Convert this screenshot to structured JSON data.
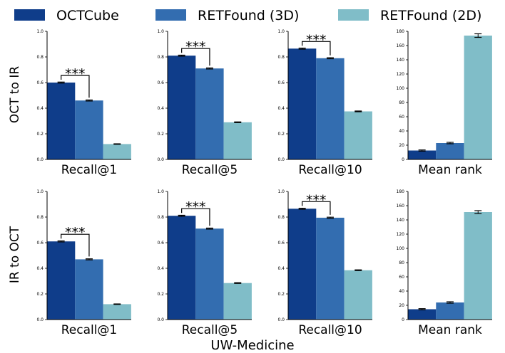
{
  "legend": {
    "items": [
      {
        "label": "OCTCube",
        "color": "#0f3d8a"
      },
      {
        "label": "RETFound (3D)",
        "color": "#336db0"
      },
      {
        "label": "RETFound (2D)",
        "color": "#80bdc8"
      }
    ]
  },
  "rows": [
    "OCT to IR",
    "IR to OCT"
  ],
  "footer": "UW-Medicine",
  "chart_data": [
    {
      "type": "bar",
      "row": "OCT to IR",
      "xlabel": "Recall@1",
      "ylim": [
        0,
        1.0
      ],
      "yticks": [
        "0.0",
        "0.2",
        "0.4",
        "0.6",
        "0.8",
        "1.0"
      ],
      "series": [
        {
          "name": "OCTCube",
          "value": 0.6,
          "err": 0.004
        },
        {
          "name": "RETFound (3D)",
          "value": 0.46,
          "err": 0.004
        },
        {
          "name": "RETFound (2D)",
          "value": 0.12,
          "err": 0.002
        }
      ],
      "significance": "***"
    },
    {
      "type": "bar",
      "row": "OCT to IR",
      "xlabel": "Recall@5",
      "ylim": [
        0,
        1.0
      ],
      "yticks": [
        "0.0",
        "0.2",
        "0.4",
        "0.6",
        "0.8",
        "1.0"
      ],
      "series": [
        {
          "name": "OCTCube",
          "value": 0.81,
          "err": 0.004
        },
        {
          "name": "RETFound (3D)",
          "value": 0.71,
          "err": 0.004
        },
        {
          "name": "RETFound (2D)",
          "value": 0.29,
          "err": 0.003
        }
      ],
      "significance": "***"
    },
    {
      "type": "bar",
      "row": "OCT to IR",
      "xlabel": "Recall@10",
      "ylim": [
        0,
        1.0
      ],
      "yticks": [
        "0.0",
        "0.2",
        "0.4",
        "0.6",
        "0.8",
        "1.0"
      ],
      "series": [
        {
          "name": "OCTCube",
          "value": 0.865,
          "err": 0.004
        },
        {
          "name": "RETFound (3D)",
          "value": 0.79,
          "err": 0.004
        },
        {
          "name": "RETFound (2D)",
          "value": 0.375,
          "err": 0.003
        }
      ],
      "significance": "***"
    },
    {
      "type": "bar",
      "row": "OCT to IR",
      "xlabel": "Mean rank",
      "ylim": [
        0,
        180
      ],
      "yticks": [
        "0",
        "20",
        "40",
        "60",
        "80",
        "100",
        "120",
        "140",
        "160",
        "180"
      ],
      "series": [
        {
          "name": "OCTCube",
          "value": 12.5,
          "err": 0.8
        },
        {
          "name": "RETFound (3D)",
          "value": 23,
          "err": 1.0
        },
        {
          "name": "RETFound (2D)",
          "value": 174,
          "err": 2.5
        }
      ],
      "significance": ""
    },
    {
      "type": "bar",
      "row": "IR to OCT",
      "xlabel": "Recall@1",
      "ylim": [
        0,
        1.0
      ],
      "yticks": [
        "0.0",
        "0.2",
        "0.4",
        "0.6",
        "0.8",
        "1.0"
      ],
      "series": [
        {
          "name": "OCTCube",
          "value": 0.61,
          "err": 0.004
        },
        {
          "name": "RETFound (3D)",
          "value": 0.47,
          "err": 0.004
        },
        {
          "name": "RETFound (2D)",
          "value": 0.12,
          "err": 0.002
        }
      ],
      "significance": "***"
    },
    {
      "type": "bar",
      "row": "IR to OCT",
      "xlabel": "Recall@5",
      "ylim": [
        0,
        1.0
      ],
      "yticks": [
        "0.0",
        "0.2",
        "0.4",
        "0.6",
        "0.8",
        "1.0"
      ],
      "series": [
        {
          "name": "OCTCube",
          "value": 0.81,
          "err": 0.004
        },
        {
          "name": "RETFound (3D)",
          "value": 0.71,
          "err": 0.004
        },
        {
          "name": "RETFound (2D)",
          "value": 0.285,
          "err": 0.003
        }
      ],
      "significance": "***"
    },
    {
      "type": "bar",
      "row": "IR to OCT",
      "xlabel": "Recall@10",
      "ylim": [
        0,
        1.0
      ],
      "yticks": [
        "0.0",
        "0.2",
        "0.4",
        "0.6",
        "0.8",
        "1.0"
      ],
      "series": [
        {
          "name": "OCTCube",
          "value": 0.865,
          "err": 0.004
        },
        {
          "name": "RETFound (3D)",
          "value": 0.795,
          "err": 0.004
        },
        {
          "name": "RETFound (2D)",
          "value": 0.385,
          "err": 0.003
        }
      ],
      "significance": "***"
    },
    {
      "type": "bar",
      "row": "IR to OCT",
      "xlabel": "Mean rank",
      "ylim": [
        0,
        180
      ],
      "yticks": [
        "0",
        "20",
        "40",
        "60",
        "80",
        "100",
        "120",
        "140",
        "160",
        "180"
      ],
      "series": [
        {
          "name": "OCTCube",
          "value": 14.5,
          "err": 0.8
        },
        {
          "name": "RETFound (3D)",
          "value": 24,
          "err": 1.0
        },
        {
          "name": "RETFound (2D)",
          "value": 151,
          "err": 2.0
        }
      ],
      "significance": ""
    }
  ]
}
